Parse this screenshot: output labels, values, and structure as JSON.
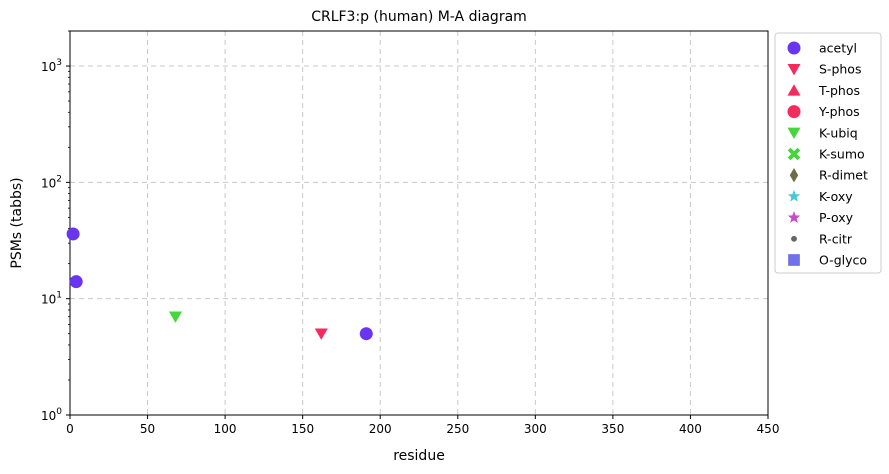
{
  "chart_data": {
    "type": "scatter",
    "title": "CRLF3:p (human) M-A diagram",
    "xlabel": "residue",
    "ylabel": "PSMs (tabbs)",
    "xlim": [
      0,
      450
    ],
    "ylim": [
      1,
      2000
    ],
    "yscale": "log",
    "grid": true,
    "legend_position": "outside-right",
    "x_ticks": [
      "0",
      "50",
      "100",
      "150",
      "200",
      "250",
      "300",
      "350",
      "400",
      "450"
    ],
    "y_ticks": [
      {
        "value": 1,
        "base": "10",
        "exp": "0"
      },
      {
        "value": 10,
        "base": "10",
        "exp": "1"
      },
      {
        "value": 100,
        "base": "10",
        "exp": "2"
      },
      {
        "value": 1000,
        "base": "10",
        "exp": "3"
      }
    ],
    "series": [
      {
        "name": "acetyl",
        "marker": "circle",
        "color": "#6a35f0",
        "points": [
          {
            "x": 2,
            "y": 36
          },
          {
            "x": 4,
            "y": 14
          },
          {
            "x": 191,
            "y": 5
          }
        ]
      },
      {
        "name": "S-phos",
        "marker": "triangle-down",
        "color": "#f52a5e",
        "points": [
          {
            "x": 162,
            "y": 5
          }
        ]
      },
      {
        "name": "T-phos",
        "marker": "triangle-up",
        "color": "#f52a5e",
        "points": []
      },
      {
        "name": "Y-phos",
        "marker": "circle",
        "color": "#f52a5e",
        "points": []
      },
      {
        "name": "K-ubiq",
        "marker": "triangle-down",
        "color": "#45d63a",
        "points": [
          {
            "x": 68,
            "y": 7
          }
        ]
      },
      {
        "name": "K-sumo",
        "marker": "x",
        "color": "#45d63a",
        "points": []
      },
      {
        "name": "R-dimet",
        "marker": "diamond",
        "color": "#6e6b48",
        "points": []
      },
      {
        "name": "K-oxy",
        "marker": "star",
        "color": "#45c8d8",
        "points": []
      },
      {
        "name": "P-oxy",
        "marker": "star",
        "color": "#c84ac8",
        "points": []
      },
      {
        "name": "R-citr",
        "marker": "small-circle",
        "color": "#666666",
        "points": []
      },
      {
        "name": "O-glyco",
        "marker": "square",
        "color": "#7070e8",
        "points": []
      }
    ]
  }
}
